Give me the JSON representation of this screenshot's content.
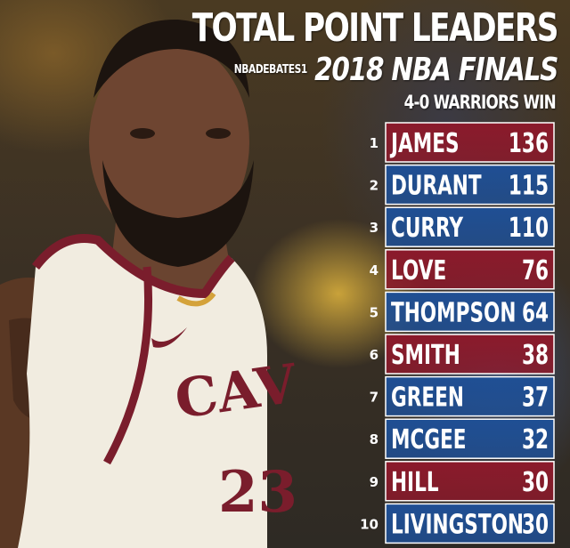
{
  "header": {
    "title": "TOTAL POINT LEADERS",
    "handle": "NBADEBATES1",
    "subtitle": "2018 NBA FINALS",
    "result": "4-0 WARRIORS WIN"
  },
  "colors": {
    "cavaliers": "#8b1a2b",
    "warriors": "#1f4f94",
    "jersey": "#f1ece0",
    "trim": "#7a1d2c"
  },
  "chart_data": {
    "type": "table",
    "title": "TOTAL POINT LEADERS",
    "subtitle": "2018 NBA FINALS",
    "columns": [
      "rank",
      "player",
      "points"
    ],
    "rows": [
      {
        "rank": "1",
        "player": "JAMES",
        "points": "136",
        "team": "cavaliers"
      },
      {
        "rank": "2",
        "player": "DURANT",
        "points": "115",
        "team": "warriors"
      },
      {
        "rank": "3",
        "player": "CURRY",
        "points": "110",
        "team": "warriors"
      },
      {
        "rank": "4",
        "player": "LOVE",
        "points": "76",
        "team": "cavaliers"
      },
      {
        "rank": "5",
        "player": "THOMPSON",
        "points": "64",
        "team": "warriors"
      },
      {
        "rank": "6",
        "player": "SMITH",
        "points": "38",
        "team": "cavaliers"
      },
      {
        "rank": "7",
        "player": "GREEN",
        "points": "37",
        "team": "warriors"
      },
      {
        "rank": "8",
        "player": "MCGEE",
        "points": "32",
        "team": "warriors"
      },
      {
        "rank": "9",
        "player": "HILL",
        "points": "30",
        "team": "cavaliers"
      },
      {
        "rank": "10",
        "player": "LIVINGSTON",
        "points": "30",
        "team": "warriors"
      }
    ]
  }
}
